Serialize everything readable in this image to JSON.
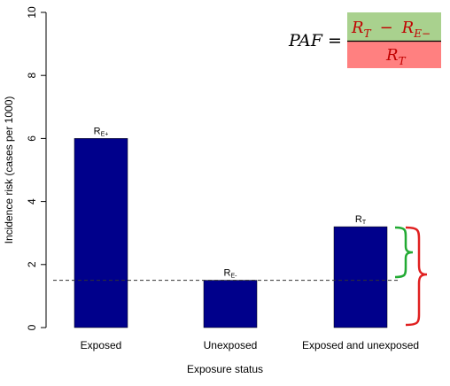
{
  "chart_data": {
    "type": "bar",
    "categories": [
      "Exposed",
      "Unexposed",
      "Exposed and unexposed"
    ],
    "values": [
      6.0,
      1.5,
      3.2
    ],
    "bar_labels": [
      {
        "main": "R",
        "sub": "E+"
      },
      {
        "main": "R",
        "sub": "E-"
      },
      {
        "main": "R",
        "sub": "T"
      }
    ],
    "xlabel": "Exposure status",
    "ylabel": "Incidence risk (cases per 1000)",
    "ylim": [
      0,
      10
    ],
    "yticks": [
      "0",
      "2",
      "4",
      "6",
      "8",
      "10"
    ],
    "reference_line": {
      "value": 1.5,
      "style": "dashed"
    },
    "bar_color": "#00008B",
    "grid": false
  },
  "formula": {
    "lhs": "PAF =",
    "numerator": {
      "term1": "R",
      "term1_sub": "T",
      "op": "−",
      "term2": "R",
      "term2_sub": "E−",
      "highlight_color": "#A9D18E"
    },
    "denominator": {
      "term": "R",
      "term_sub": "T",
      "highlight_color": "#FF8080"
    }
  },
  "annotations": {
    "inner_brace_color": "#22AA33",
    "outer_brace_color": "#E02020"
  }
}
